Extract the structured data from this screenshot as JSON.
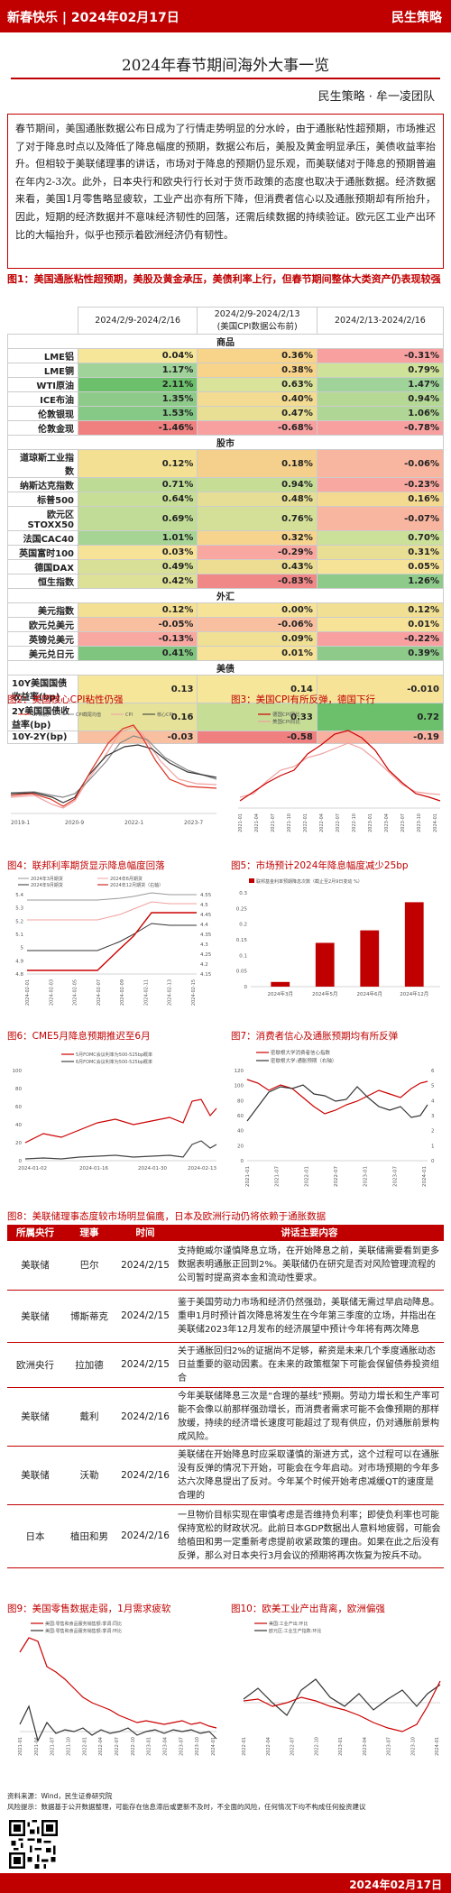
{
  "header": {
    "left": "新春快乐 | 2024年02月17日",
    "right": "民生策略"
  },
  "title": "2024年春节期间海外大事一览",
  "author": "民生策略 · 牟一凌团队",
  "intro": "春节期间，美国通胀数据公布日成为了行情走势明显的分水岭，由于通胀粘性超预期，市场推迟了对于降息时点以及降低了降息幅度的预期，数据公布后，美股及黄金明显承压，美债收益率抬升。但相较于美联储理事的讲话，市场对于降息的预期仍显乐观，而美联储对于降息的预期普遍在年内2-3次。此外，日本央行和欧央行行长对于货币政策的态度也取决于通胀数据。经济数据来看，美国1月零售略显疲软，工业产出亦有所下降，但消费者信心以及通胀预期却有所抬升，因此，短期的经济数据并不意味经济韧性的回落，还需后续数据的持续验证。欧元区工业产出环比的大幅抬升，似乎也预示着欧洲经济仍有韧性。",
  "table_heading": "图1：美国通胀粘性超预期，美股及黄金承压，美债利率上行，但春节期间整体大类资产仍表现较强",
  "table": {
    "col1": "2024/2/9-2024/2/16",
    "col2a": "2024/2/9-2024/2/13",
    "col2b": "(美国CPI数据公布前)",
    "col3": "2024/2/13-2024/2/16",
    "sections": [
      {
        "name": "商品",
        "rows": [
          {
            "n": "LME铝",
            "a": "0.04%",
            "b": "0.36%",
            "c": "-0.31%",
            "ca": "#f5e69a",
            "cb": "#f8d48a",
            "cc": "#f8a0a0"
          },
          {
            "n": "LME铜",
            "a": "1.17%",
            "b": "0.38%",
            "c": "0.79%",
            "ca": "#9fd39a",
            "cb": "#f8d48a",
            "cc": "#cfe29a"
          },
          {
            "n": "WTI原油",
            "a": "2.11%",
            "b": "0.63%",
            "c": "1.47%",
            "ca": "#6cc06c",
            "cb": "#d9e39a",
            "cc": "#9fd39a"
          },
          {
            "n": "ICE布油",
            "a": "1.35%",
            "b": "0.40%",
            "c": "0.94%",
            "ca": "#8ecb8a",
            "cb": "#f3dc92",
            "cc": "#b5d995"
          },
          {
            "n": "伦敦银现",
            "a": "1.53%",
            "b": "0.47%",
            "c": "1.06%",
            "ca": "#86c886",
            "cb": "#e9df94",
            "cc": "#afd694"
          },
          {
            "n": "伦敦金现",
            "a": "-1.46%",
            "b": "-0.68%",
            "c": "-0.78%",
            "ca": "#f08080",
            "cb": "#f8a0a0",
            "cc": "#f8a0a0"
          }
        ]
      },
      {
        "name": "股市",
        "rows": [
          {
            "n": "道琼斯工业指数",
            "a": "0.12%",
            "b": "0.18%",
            "c": "-0.06%",
            "ca": "#f3e092",
            "cb": "#f5cf8c",
            "cc": "#f8b5a0"
          },
          {
            "n": "纳斯达克指数",
            "a": "0.71%",
            "b": "0.94%",
            "c": "-0.23%",
            "ca": "#bedb96",
            "cb": "#c6dd96",
            "cc": "#f8a8a0"
          },
          {
            "n": "标普500",
            "a": "0.64%",
            "b": "0.48%",
            "c": "0.16%",
            "ca": "#c7de97",
            "cb": "#e6de94",
            "cc": "#f4d990"
          },
          {
            "n": "欧元区STOXX50",
            "a": "0.69%",
            "b": "0.76%",
            "c": "-0.07%",
            "ca": "#c0dc96",
            "cb": "#d4e097",
            "cc": "#f8b5a0"
          },
          {
            "n": "法国CAC40",
            "a": "1.01%",
            "b": "0.32%",
            "c": "0.70%",
            "ca": "#a6d494",
            "cb": "#f6d48e",
            "cc": "#cbe098"
          },
          {
            "n": "英国富时100",
            "a": "0.03%",
            "b": "-0.29%",
            "c": "0.31%",
            "ca": "#f7e398",
            "cb": "#f8a8a0",
            "cc": "#e9df94"
          },
          {
            "n": "德国DAX",
            "a": "0.49%",
            "b": "0.43%",
            "c": "0.05%",
            "ca": "#d8e097",
            "cb": "#ecdd93",
            "cc": "#f7e398"
          },
          {
            "n": "恒生指数",
            "a": "0.42%",
            "b": "-0.83%",
            "c": "1.26%",
            "ca": "#dde097",
            "cb": "#f08888",
            "cc": "#8ecb8a"
          }
        ]
      },
      {
        "name": "外汇",
        "rows": [
          {
            "n": "美元指数",
            "a": "0.12%",
            "b": "0.00%",
            "c": "0.12%",
            "ca": "#f3e092",
            "cb": "#f7e398",
            "cc": "#f1e093"
          },
          {
            "n": "欧元兑美元",
            "a": "-0.05%",
            "b": "-0.06%",
            "c": "0.01%",
            "ca": "#f8c0a0",
            "cb": "#f8c0a0",
            "cc": "#f7e398"
          },
          {
            "n": "英镑兑美元",
            "a": "-0.13%",
            "b": "0.09%",
            "c": "-0.22%",
            "ca": "#f8a8a0",
            "cb": "#f0e094",
            "cc": "#f8a0a0"
          },
          {
            "n": "美元兑日元",
            "a": "0.41%",
            "b": "0.01%",
            "c": "0.39%",
            "ca": "#7fc57f",
            "cb": "#f7e398",
            "cc": "#8ecb8a"
          }
        ]
      },
      {
        "name": "美债",
        "rows": [
          {
            "n": "10Y美国国债收益率(bp)",
            "a": "0.13",
            "b": "0.14",
            "c": "-0.010",
            "ca": "#f5e69a",
            "cb": "#f5e69a",
            "cc": "#f7e398"
          },
          {
            "n": "2Y美国国债收益率(bp)",
            "a": "0.16",
            "b": "0.33",
            "c": "0.72",
            "ca": "#e6e29a",
            "cb": "#c6dd96",
            "cc": "#6cc06c"
          },
          {
            "n": "10Y-2Y(bp)",
            "a": "-0.03",
            "b": "-0.58",
            "c": "-0.19",
            "ca": "#f8c0a0",
            "cb": "#f08080",
            "cc": "#f8b0a0"
          }
        ]
      }
    ]
  },
  "fig2": {
    "label": "图2：美国核心CPI粘性仍强",
    "legend": [
      "CPI同比",
      "CPI截尾均值",
      "CPI",
      "核心CPI"
    ],
    "xticks": [
      "2019-1",
      "2020-9",
      "2022-1",
      "2023-7"
    ]
  },
  "fig3": {
    "label": "图3：美国CPI有所反弹，德国下行",
    "legend": [
      "德国CPI同比",
      "美国CPI同比"
    ],
    "xticks": [
      "2021-01",
      "2021-04",
      "2021-07",
      "2021-10",
      "2022-01",
      "2022-04",
      "2022-07",
      "2022-10",
      "2023-01",
      "2023-04",
      "2023-07",
      "2023-10",
      "2024-01"
    ]
  },
  "fig4": {
    "label": "图4：联邦利率期货显示降息幅度回落",
    "legend": [
      "2024年3月期货",
      "2024年6月期货",
      "2024年9月期货",
      "2024年12月期货（右轴）"
    ],
    "yticks_left": [
      "5.4",
      "5.3",
      "5.2",
      "5.1",
      "5",
      "4.9",
      "4.8"
    ],
    "yticks_right": [
      "4.55",
      "4.5",
      "4.45",
      "4.4",
      "4.35",
      "4.3",
      "4.25",
      "4.2",
      "4.15"
    ],
    "xticks": [
      "2024-02-01",
      "2024-02-03",
      "2024-02-05",
      "2024-02-07",
      "2024-02-09",
      "2024-02-11",
      "2024-02-13",
      "2024-02-15"
    ]
  },
  "fig5": {
    "label": "图5：市场预计2024年降息幅度减少25bp",
    "legend": "联邦基金利率预期降息次数（截止至2月9日变动 %）",
    "yticks": [
      "0.3",
      "0.25",
      "0.2",
      "0.15",
      "0.1",
      "0.05",
      "0"
    ],
    "categories": [
      "2024年3月",
      "2024年5月",
      "2024年6月",
      "2024年12月"
    ]
  },
  "fig6": {
    "label": "图6：CME5月降息预期推迟至6月",
    "legend": [
      "5月FOMC会议利率为500-525bp概率",
      "6月FOMC会议利率为500-525bp概率"
    ],
    "yticks": [
      "100",
      "80",
      "60",
      "40",
      "20",
      "0"
    ],
    "xticks": [
      "2024-01-02",
      "2024-01-16",
      "2024-01-30",
      "2024-02-13"
    ]
  },
  "fig7": {
    "label": "图7：消费者信心及通胀预期均有所反弹",
    "legend": [
      "密歇根大学消费者信心指数",
      "密歇根大学:通胀预期（右轴）"
    ],
    "yticks": [
      "120",
      "100",
      "80",
      "60",
      "40",
      "20",
      "0"
    ],
    "yticks_right": [
      "6",
      "5",
      "4",
      "3",
      "2",
      "1",
      "0"
    ],
    "xticks": [
      "2021-01",
      "2021-07",
      "2022-01",
      "2022-07",
      "2023-01",
      "2023-07",
      "2024-01"
    ]
  },
  "fig8": {
    "label": "图8：美联储理事态度较市场明显偏鹰，日本及欧洲行动仍将依赖于通胀数据",
    "columns": [
      "所属央行",
      "理事",
      "时间",
      "讲话主要内容"
    ],
    "rows": [
      {
        "bank": "美联储",
        "person": "巴尔",
        "date": "2024/2/15",
        "text": "支持鲍威尔谨慎降息立场，在开始降息之前，美联储需要看到更多数据表明通胀正回到2%。美联储仍在研究是否对风险管理流程的公司暂时提高资本金和流动性要求。"
      },
      {
        "bank": "美联储",
        "person": "博斯蒂克",
        "date": "2024/2/15",
        "text": "鉴于美国劳动力市场和经济仍然强劲，美联储无需过早启动降息。重申1月时预计首次降息将发生在今年第三季度的立场，并指出在美联储2023年12月发布的经济展望中预计今年将有两次降息"
      },
      {
        "bank": "欧洲央行",
        "person": "拉加德",
        "date": "2024/2/15",
        "text": "关于通胀回归2%的证据尚不足够，薪资是未来几个季度通胀动态日益重要的驱动因素。在未来的政策框架下可能会保留债券投资组合"
      },
      {
        "bank": "美联储",
        "person": "戴利",
        "date": "2024/2/16",
        "text": "今年美联储降息三次是“合理的基线”预期。劳动力增长和生产率可能不会像以前那样强劲增长，而消费者需求可能不会像预期的那样放缓，持续的经济增长速度可能超过了现有供应，仍对通胀前景构成风险。"
      },
      {
        "bank": "美联储",
        "person": "沃勒",
        "date": "2024/2/16",
        "text": "美联储在开始降息时应采取谨慎的渐进方式，这个过程可以在通胀没有反弹的情况下开始，可能会在今年启动。对市场预期的今年多达六次降息提出了反对。今年某个时候开始考虑减缓QT的速度是合理的"
      },
      {
        "bank": "日本",
        "person": "植田和男",
        "date": "2024/2/16",
        "text": "一旦物价目标实现在审慎考虑是否维持负利率；即使负利率也可能保持宽松的财政状况。此前日本GDP数据出人意料地疲弱，可能会给植田和男一定重新考虑提前收紧政策的理由。如果在此之后没有反弹，那么对日本央行3月会议的预期将再次恢复为按兵不动。"
      }
    ]
  },
  "fig9": {
    "label": "图9：美国零售数据走弱，1月需求疲软",
    "legend": [
      "美国:零售和食品服务销售额:季调:同比",
      "美国:零售和食品服务销售额:季调:环比"
    ],
    "xticks": [
      "2021-01",
      "2021-04",
      "2021-07",
      "2021-10",
      "2022-01",
      "2022-04",
      "2022-07",
      "2022-10",
      "2023-01",
      "2023-04",
      "2023-07",
      "2023-10",
      "2024-01"
    ]
  },
  "fig10": {
    "label": "图10：欧美工业产出背离，欧洲偏强",
    "legend": [
      "美国:工业产出:环比",
      "欧元区:工业生产指数:环比"
    ],
    "xticks": [
      "2022-01",
      "2022-04",
      "2022-07",
      "2022-10",
      "2023-01",
      "2023-04",
      "2023-07",
      "2023-10",
      "2024-01"
    ]
  },
  "source": "资料来源：Wind，民生证券研究院",
  "risk": "风险提示：数据基于公开数据整理，可能存在信息滞后或更新不及时，不全面的风险，任何情况下均不构成任何投资建议",
  "footer_date": "2024年02月17日",
  "chart_data": [
    {
      "type": "line",
      "title": "图2：美国核心CPI粘性仍强",
      "x": [
        "2019-1",
        "2019-7",
        "2020-1",
        "2020-7",
        "2021-1",
        "2021-7",
        "2022-1",
        "2022-7",
        "2023-1",
        "2023-7",
        "2024-1"
      ],
      "series": [
        {
          "name": "CPI同比",
          "values": [
            1.6,
            1.8,
            2.5,
            1.0,
            1.4,
            5.4,
            7.5,
            8.5,
            6.4,
            3.2,
            3.1
          ]
        },
        {
          "name": "CPI截尾均值",
          "values": [
            2.2,
            2.3,
            2.4,
            2.0,
            2.0,
            3.2,
            5.5,
            7.1,
            6.5,
            4.8,
            3.7
          ]
        },
        {
          "name": "核心CPI",
          "values": [
            2.2,
            2.2,
            2.3,
            1.6,
            1.4,
            4.3,
            6.0,
            5.9,
            5.6,
            4.7,
            3.9
          ]
        }
      ]
    },
    {
      "type": "line",
      "title": "图3：美国CPI有所反弹，德国下行",
      "x": [
        "2021-01",
        "2021-07",
        "2022-01",
        "2022-07",
        "2023-01",
        "2023-07",
        "2024-01"
      ],
      "series": [
        {
          "name": "德国CPI同比",
          "values": [
            1.0,
            3.8,
            5.1,
            8.5,
            9.2,
            6.2,
            2.9
          ]
        },
        {
          "name": "美国CPI同比",
          "values": [
            1.4,
            5.4,
            7.5,
            8.5,
            6.4,
            3.2,
            3.1
          ]
        }
      ]
    },
    {
      "type": "bar",
      "title": "图5：市场预计2024年降息幅度减少25bp",
      "categories": [
        "2024年3月",
        "2024年5月",
        "2024年6月",
        "2024年12月"
      ],
      "values": [
        0.015,
        0.14,
        0.18,
        0.27
      ],
      "ylim": [
        0,
        0.3
      ]
    },
    {
      "type": "line",
      "title": "图6：CME5月降息预期推迟至6月",
      "x": [
        "2024-01-02",
        "2024-01-16",
        "2024-01-30",
        "2024-02-13"
      ],
      "series": [
        {
          "name": "5月FOMC会议利率为500-525bp概率",
          "values": [
            10,
            30,
            32,
            58
          ]
        },
        {
          "name": "6月FOMC会议利率为500-525bp概率",
          "values": [
            2,
            5,
            6,
            30
          ]
        }
      ]
    }
  ]
}
